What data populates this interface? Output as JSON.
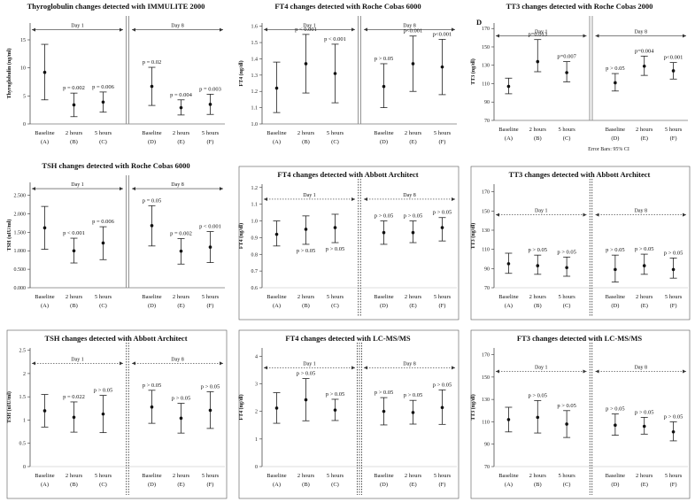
{
  "chart_data": [
    {
      "type": "errorbar",
      "title": "Thyroglobulin changes detected with IMMULITE 2000",
      "ylabel": "Thyroglobulin (ng/ml)",
      "ylim": [
        0,
        18
      ],
      "yticks": [
        "0",
        "5",
        "10",
        "15"
      ],
      "ytick_values": [
        0,
        5,
        10,
        15
      ],
      "categories": [
        "Baseline\n(A)",
        "2 hours\n(B)",
        "5 hours\n(C)",
        "Baseline\n(D)",
        "2 hours\n(E)",
        "5 hours\n(F)"
      ],
      "means": [
        9.2,
        3.4,
        3.9,
        6.7,
        2.9,
        3.5
      ],
      "lower": [
        4.3,
        1.3,
        2.1,
        3.3,
        1.6,
        1.7
      ],
      "upper": [
        14.2,
        5.5,
        5.7,
        10.1,
        4.3,
        5.3
      ],
      "annotations": [
        "",
        "p = 0.002",
        "p = 0.006",
        "p = 0.02",
        "p = 0.004",
        "p = 0.003"
      ],
      "day_labels": [
        "Day 1",
        "Day 8"
      ],
      "day_y": 16.8,
      "divider": "double-solid",
      "boxed": false,
      "footer": ""
    },
    {
      "type": "errorbar",
      "title": "FT4 changes detected with Roche Cobas 6000",
      "ylabel": "FT4 (ng/dl)",
      "ylim": [
        1.0,
        1.62
      ],
      "yticks": [
        "1.0",
        "1.1",
        "1.2",
        "1.3",
        "1.4",
        "1.5",
        "1.6"
      ],
      "ytick_values": [
        1.0,
        1.1,
        1.2,
        1.3,
        1.4,
        1.5,
        1.6
      ],
      "categories": [
        "Baseline\n(A)",
        "2 hours\n(B)",
        "5 hours\n(C)",
        "Baseline\n(D)",
        "2 hours\n(E)",
        "5 hours\n(F)"
      ],
      "means": [
        1.22,
        1.37,
        1.31,
        1.23,
        1.37,
        1.35
      ],
      "lower": [
        1.07,
        1.19,
        1.13,
        1.1,
        1.2,
        1.18
      ],
      "upper": [
        1.38,
        1.55,
        1.49,
        1.37,
        1.54,
        1.52
      ],
      "annotations": [
        "",
        "p < 0.001",
        "p < 0.001",
        "p > 0.05",
        "p<0.001",
        "p<0.001"
      ],
      "day_labels": [
        "Day 1",
        "Day 8"
      ],
      "day_y": 1.58,
      "divider": "double-solid",
      "boxed": false,
      "footer": ""
    },
    {
      "type": "errorbar",
      "title": "TT3 changes detected with Roche Cobas 2000",
      "panel_letter": "D",
      "ylabel": "TT3 (ng/dl)",
      "ylim": [
        70,
        176
      ],
      "yticks": [
        "70",
        "90",
        "110",
        "130",
        "150",
        "170"
      ],
      "ytick_values": [
        70,
        90,
        110,
        130,
        150,
        170
      ],
      "categories": [
        "Baseline\n(A)",
        "2 hours\n(B)",
        "5 hours\n(C)",
        "Baseline\n(D)",
        "2 hours\n(E)",
        "5 hours\n(F)"
      ],
      "means": [
        107,
        134,
        122,
        111,
        129,
        124
      ],
      "lower": [
        99,
        123,
        112,
        102,
        119,
        115
      ],
      "upper": [
        116,
        158,
        134,
        121,
        140,
        133
      ],
      "annotations": [
        "",
        "p=0.013",
        "p=0.007",
        "p > 0.05",
        "p=0.004",
        "p<0.001"
      ],
      "day_labels": [
        "Day 1",
        "Day 8"
      ],
      "day_y": 162,
      "divider": "double-solid",
      "boxed": false,
      "footer": "Error Bars: 95% CI"
    },
    {
      "type": "errorbar",
      "title": "TSH changes detected with Roche Cobas 6000",
      "ylabel": "TSH (uIU/ml)",
      "ylim": [
        0,
        2.85
      ],
      "yticks": [
        "0.000",
        "0.500",
        "1.000",
        "1.500",
        "2.000",
        "2.500"
      ],
      "ytick_values": [
        0,
        0.5,
        1.0,
        1.5,
        2.0,
        2.5
      ],
      "categories": [
        "Baseline\n(A)",
        "2 hours\n(B)",
        "5 hours\n(C)",
        "Baseline\n(D)",
        "2 hours\n(E)",
        "5 hours\n(F)"
      ],
      "means": [
        1.62,
        1.0,
        1.21,
        1.68,
        0.99,
        1.1
      ],
      "lower": [
        1.04,
        0.67,
        0.76,
        1.13,
        0.64,
        0.68
      ],
      "upper": [
        2.2,
        1.34,
        1.65,
        2.22,
        1.33,
        1.52
      ],
      "annotations": [
        "",
        "p < 0.001",
        "p = 0.006",
        "p = 0.05",
        "p = 0.002",
        "p < 0.001"
      ],
      "day_labels": [
        "Day 1",
        "Day 8"
      ],
      "day_y": 2.68,
      "divider": "double-solid",
      "boxed": false,
      "footer": ""
    },
    {
      "type": "errorbar",
      "title": "FT4 changes detected with Abbott Architect",
      "ylabel": "FT4 (ng/dl)",
      "ylim": [
        0.6,
        1.22
      ],
      "yticks": [
        "0.6",
        "0.7",
        "0.8",
        "0.9",
        "1.0",
        "1.1",
        "1.2"
      ],
      "ytick_values": [
        0.6,
        0.7,
        0.8,
        0.9,
        1.0,
        1.1,
        1.2
      ],
      "categories": [
        "Baseline\n(A)",
        "2 hours\n(B)",
        "5 hours\n(C)",
        "Baseline\n(D)",
        "2 hours\n(E)",
        "5 hours\n(F)"
      ],
      "means": [
        0.92,
        0.95,
        0.96,
        0.93,
        0.93,
        0.96
      ],
      "lower": [
        0.85,
        0.86,
        0.87,
        0.86,
        0.87,
        0.88
      ],
      "upper": [
        1.0,
        1.03,
        1.04,
        1.0,
        1.0,
        1.02
      ],
      "annotations": [
        "",
        "p > 0.05",
        "p > 0.05",
        "p > 0.05",
        "p > 0.05",
        "p > 0.05"
      ],
      "ann_pos": [
        "",
        "below",
        "below",
        "above",
        "above",
        "above"
      ],
      "day_labels": [
        "Day 1",
        "Day 8"
      ],
      "day_y": 1.13,
      "divider": "double-dotted",
      "boxed": true,
      "footer": ""
    },
    {
      "type": "errorbar",
      "title": "TT3 changes detected with Abbott Architect",
      "ylabel": "TT3 (ng/dl)",
      "ylim": [
        70,
        178
      ],
      "yticks": [
        "70",
        "90",
        "110",
        "130",
        "150",
        "170"
      ],
      "ytick_values": [
        70,
        90,
        110,
        130,
        150,
        170
      ],
      "categories": [
        "Baseline\n(A)",
        "2 hours\n(B)",
        "5 hours\n(C)",
        "Baseline\n(D)",
        "2 hours\n(E)",
        "5 hours\n(F)"
      ],
      "means": [
        95,
        93,
        91,
        89,
        93,
        89
      ],
      "lower": [
        85,
        84,
        82,
        76,
        84,
        80
      ],
      "upper": [
        106,
        104,
        102,
        104,
        105,
        101
      ],
      "annotations": [
        "",
        "p > 0.05",
        "p > 0.05",
        "p > 0.05",
        "p > 0.05",
        "p > 0.05"
      ],
      "day_labels": [
        "Day 1",
        "Day 8"
      ],
      "day_y": 146,
      "divider": "double-dotted",
      "boxed": true,
      "footer": ""
    },
    {
      "type": "errorbar",
      "title": "TSH changes detected with Abbott  Architect",
      "ylabel": "TSH (uIU/ml)",
      "ylim": [
        0,
        2.55
      ],
      "yticks": [
        "0",
        "0.5",
        "1",
        "1.5",
        "2",
        "2.5"
      ],
      "ytick_values": [
        0,
        0.5,
        1.0,
        1.5,
        2.0,
        2.5
      ],
      "categories": [
        "Baseline\n(A)",
        "2 hours\n(B)",
        "5 hours\n(C)",
        "Baseline\n(D)",
        "2 hours\n(E)",
        "5 hours\n(F)"
      ],
      "means": [
        1.2,
        1.06,
        1.13,
        1.28,
        1.04,
        1.21
      ],
      "lower": [
        0.85,
        0.74,
        0.73,
        0.93,
        0.72,
        0.82
      ],
      "upper": [
        1.55,
        1.39,
        1.53,
        1.64,
        1.36,
        1.61
      ],
      "annotations": [
        "",
        "p = 0.022",
        "p > 0.05",
        "p > 0.05",
        "p > 0.05",
        "p > 0.05"
      ],
      "day_labels": [
        "Day 1",
        "Day 8"
      ],
      "day_y": 2.22,
      "divider": "double-dotted",
      "boxed": true,
      "footer": ""
    },
    {
      "type": "errorbar",
      "title": "FT4 changes detected with LC-MS/MS",
      "ylabel": "FT4 (ng/dl)",
      "ylim": [
        0,
        4.3
      ],
      "yticks": [
        "0",
        "1",
        "2",
        "3",
        "4"
      ],
      "ytick_values": [
        0,
        1,
        2,
        3,
        4
      ],
      "categories": [
        "Baseline\n(A)",
        "2 hours\n(B)",
        "5 hours\n(C)",
        "Baseline\n(D)",
        "2 hours\n(E)",
        "5 hours\n(F)"
      ],
      "means": [
        2.12,
        2.42,
        2.05,
        2.0,
        1.96,
        2.14
      ],
      "lower": [
        1.57,
        1.66,
        1.67,
        1.51,
        1.54,
        1.53
      ],
      "upper": [
        2.68,
        3.19,
        2.44,
        2.5,
        2.4,
        2.78
      ],
      "annotations": [
        "",
        "p > 0.05",
        "p > 0.05",
        "p > 0.05",
        "p > 0.05",
        "p > 0.05"
      ],
      "day_labels": [
        "Day 1",
        "Day 8"
      ],
      "day_y": 3.58,
      "divider": "triple-dotted",
      "boxed": true,
      "footer": ""
    },
    {
      "type": "errorbar",
      "title": "FT3 changes detected with LC-MS/MS",
      "ylabel": "TT3 (ng/dl)",
      "ylim": [
        70,
        176
      ],
      "yticks": [
        "70",
        "90",
        "110",
        "130",
        "150",
        "170"
      ],
      "ytick_values": [
        70,
        90,
        110,
        130,
        150,
        170
      ],
      "categories": [
        "Baseline\n(A)",
        "2 hours\n(B)",
        "5 hours\n(C)",
        "Baseline\n(D)",
        "2 hours\n(E)",
        "5 hours\n(F)"
      ],
      "means": [
        112,
        114,
        108,
        107,
        106,
        101
      ],
      "lower": [
        101,
        100,
        96,
        98,
        99,
        93
      ],
      "upper": [
        123,
        129,
        120,
        117,
        114,
        110
      ],
      "annotations": [
        "",
        "p > 0.05",
        "p > 0.05",
        "p > 0.05",
        "p > 0.05",
        "p > 0.05"
      ],
      "day_labels": [
        "Day 1",
        "Day 8"
      ],
      "day_y": 155,
      "divider": "double-dotted",
      "boxed": true,
      "footer": ""
    }
  ]
}
